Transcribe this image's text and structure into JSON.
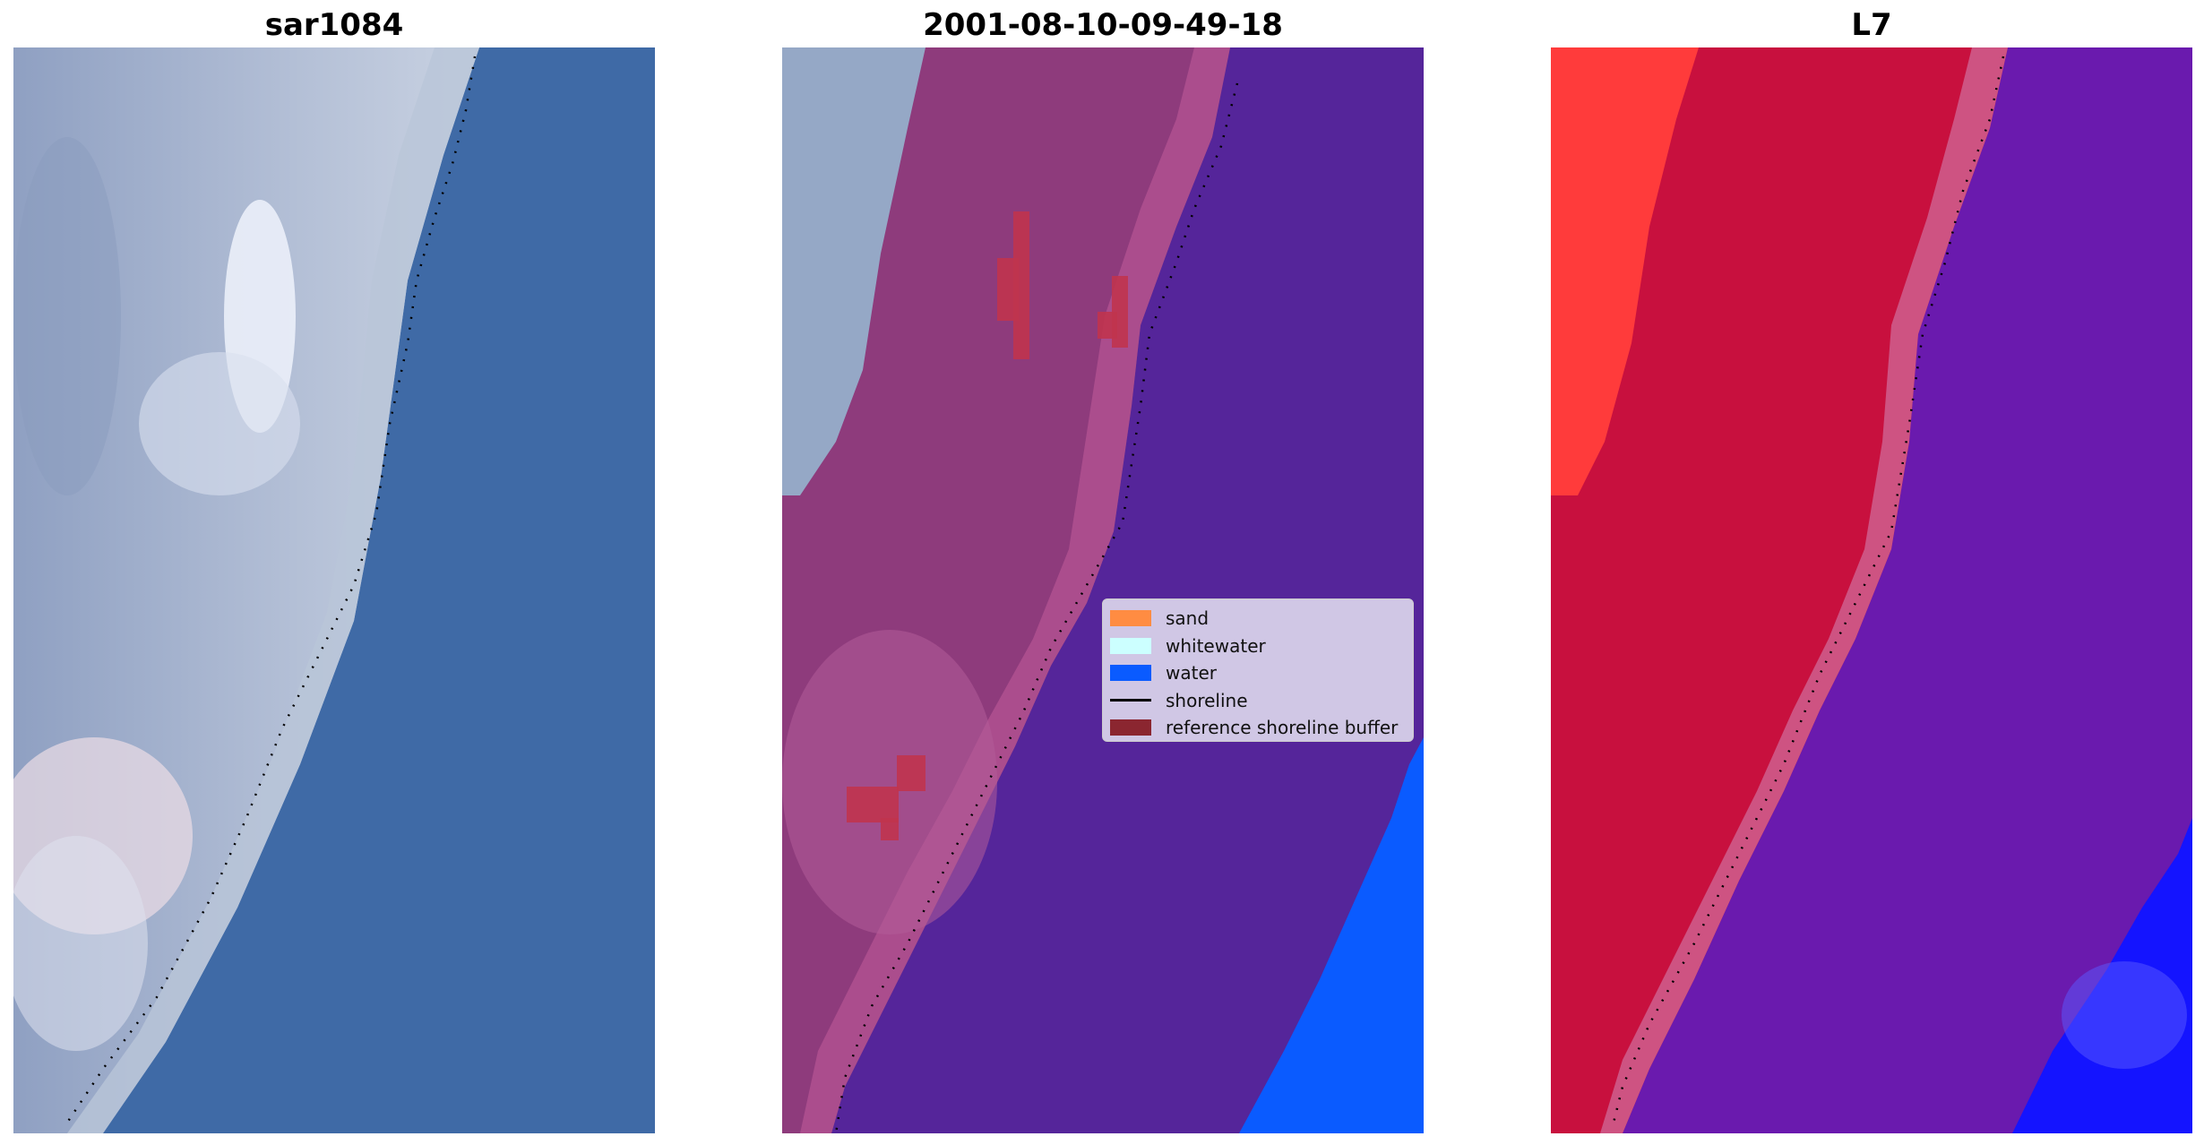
{
  "panels": [
    {
      "title": "sar1084"
    },
    {
      "title": "2001-08-10-09-49-18"
    },
    {
      "title": "L7"
    }
  ],
  "legend": {
    "items": [
      {
        "label": "sand",
        "color": "#ff8c42"
      },
      {
        "label": "whitewater",
        "color": "#ccffff"
      },
      {
        "label": "water",
        "color": "#0a5bff"
      },
      {
        "label": "shoreline",
        "color": "#000000"
      },
      {
        "label": "reference shoreline buffer",
        "color": "#8b2630"
      }
    ]
  },
  "colors": {
    "rgb_land": "#a9b6cf",
    "rgb_water": "#3f6aa6",
    "class_land": "#8e3b7c",
    "class_ocean": "#55259a",
    "class_water": "#0a5bff",
    "class_whitewater_edge": "#c4608f",
    "false_land_bright": "#ff3b3b",
    "false_land": "#c8103e",
    "false_ocean": "#6a1aae",
    "false_water": "#1414ff"
  }
}
